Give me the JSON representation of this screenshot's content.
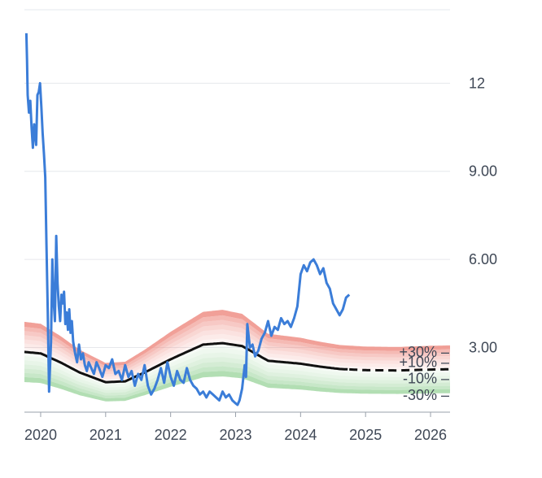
{
  "chart_data": {
    "type": "line",
    "title": "",
    "xlabel": "",
    "ylabel": "",
    "xlim": [
      2019.75,
      2026.3
    ],
    "ylim": [
      0.8,
      14.5
    ],
    "grid": true,
    "y_ticks": [
      {
        "value": 12,
        "label": "12"
      },
      {
        "value": 9,
        "label": "9.00"
      },
      {
        "value": 6,
        "label": "6.00"
      },
      {
        "value": 3,
        "label": "3.00"
      }
    ],
    "x_ticks": [
      {
        "value": 2020,
        "label": "2020"
      },
      {
        "value": 2021,
        "label": "2021"
      },
      {
        "value": 2022,
        "label": "2022"
      },
      {
        "value": 2023,
        "label": "2023"
      },
      {
        "value": 2024,
        "label": "2024"
      },
      {
        "value": 2025,
        "label": "2025"
      },
      {
        "value": 2026,
        "label": "2026"
      }
    ],
    "band_labels": [
      {
        "label": "+30% –",
        "value": 2.85
      },
      {
        "label": "+10% –",
        "value": 2.5
      },
      {
        "label": "-10% –",
        "value": 1.95
      },
      {
        "label": "-30% –",
        "value": 1.38
      }
    ],
    "colors": {
      "price": "#3b7dd8",
      "fair": "#111111",
      "upper": "#ef8f86",
      "lower": "#a5d8a6",
      "grid": "#e6e8ec"
    },
    "series": [
      {
        "role": "fair-value",
        "x": [
          2019.75,
          2020.0,
          2020.3,
          2020.6,
          2021.0,
          2021.3,
          2021.6,
          2022.0,
          2022.3,
          2022.5,
          2022.8,
          2023.1,
          2023.5,
          2024.0,
          2024.3,
          2024.6,
          2025.0,
          2025.5,
          2026.0,
          2026.3
        ],
        "y": [
          2.85,
          2.8,
          2.5,
          2.15,
          1.82,
          1.85,
          2.15,
          2.6,
          2.9,
          3.1,
          3.15,
          3.05,
          2.55,
          2.45,
          2.35,
          2.27,
          2.23,
          2.22,
          2.25,
          2.26
        ],
        "projected_from": 2024.75
      },
      {
        "role": "price",
        "x": [
          2019.78,
          2019.79,
          2019.8,
          2019.82,
          2019.84,
          2019.86,
          2019.88,
          2019.9,
          2019.93,
          2019.95,
          2019.97,
          2019.99,
          2020.01,
          2020.03,
          2020.05,
          2020.07,
          2020.09,
          2020.11,
          2020.13,
          2020.16,
          2020.18,
          2020.2,
          2020.22,
          2020.24,
          2020.26,
          2020.28,
          2020.3,
          2020.32,
          2020.34,
          2020.36,
          2020.38,
          2020.4,
          2020.42,
          2020.44,
          2020.46,
          2020.48,
          2020.5,
          2020.53,
          2020.56,
          2020.59,
          2020.62,
          2020.65,
          2020.68,
          2020.71,
          2020.74,
          2020.78,
          2020.82,
          2020.86,
          2020.9,
          2020.95,
          2021.0,
          2021.05,
          2021.1,
          2021.15,
          2021.2,
          2021.25,
          2021.3,
          2021.35,
          2021.4,
          2021.45,
          2021.5,
          2021.55,
          2021.6,
          2021.65,
          2021.7,
          2021.75,
          2021.8,
          2021.85,
          2021.9,
          2021.95,
          2022.0,
          2022.05,
          2022.1,
          2022.15,
          2022.2,
          2022.25,
          2022.3,
          2022.35,
          2022.4,
          2022.45,
          2022.5,
          2022.55,
          2022.6,
          2022.65,
          2022.7,
          2022.75,
          2022.8,
          2022.85,
          2022.9,
          2022.95,
          2023.0,
          2023.03,
          2023.06,
          2023.08,
          2023.1,
          2023.12,
          2023.14,
          2023.16,
          2023.18,
          2023.22,
          2023.26,
          2023.3,
          2023.35,
          2023.4,
          2023.45,
          2023.5,
          2023.55,
          2023.6,
          2023.65,
          2023.7,
          2023.75,
          2023.8,
          2023.85,
          2023.9,
          2023.95,
          2024.0,
          2024.05,
          2024.1,
          2024.15,
          2024.2,
          2024.25,
          2024.3,
          2024.35,
          2024.4,
          2024.45,
          2024.5,
          2024.55,
          2024.6,
          2024.65,
          2024.7,
          2024.75
        ],
        "y": [
          13.7,
          12.8,
          11.6,
          11.0,
          11.4,
          10.5,
          9.8,
          10.6,
          9.9,
          11.6,
          11.7,
          12.0,
          11.2,
          10.3,
          9.6,
          8.8,
          6.5,
          4.2,
          1.5,
          3.2,
          6.0,
          4.6,
          3.9,
          6.8,
          5.2,
          4.4,
          3.9,
          4.8,
          4.5,
          4.9,
          3.8,
          4.2,
          3.6,
          4.3,
          3.5,
          3.9,
          3.2,
          2.8,
          2.5,
          3.1,
          2.6,
          2.8,
          2.4,
          2.2,
          2.5,
          2.3,
          2.1,
          2.5,
          2.3,
          2.0,
          2.4,
          2.3,
          2.6,
          2.1,
          2.2,
          1.9,
          2.4,
          2.0,
          2.2,
          1.7,
          2.1,
          1.9,
          2.4,
          1.7,
          1.4,
          1.6,
          1.9,
          2.3,
          1.8,
          2.5,
          2.0,
          1.7,
          2.2,
          1.9,
          1.8,
          2.3,
          1.9,
          1.7,
          1.6,
          1.4,
          1.5,
          1.3,
          1.5,
          1.4,
          1.3,
          1.2,
          1.5,
          1.3,
          1.4,
          1.2,
          1.1,
          1.05,
          1.2,
          1.4,
          1.6,
          2.0,
          2.4,
          2.0,
          3.8,
          3.0,
          3.1,
          2.7,
          2.9,
          3.3,
          3.5,
          3.9,
          3.4,
          3.7,
          3.6,
          4.0,
          3.8,
          3.9,
          3.7,
          4.0,
          4.4,
          5.5,
          5.8,
          5.6,
          5.9,
          6.0,
          5.8,
          5.5,
          5.7,
          5.2,
          5.0,
          4.5,
          4.3,
          4.1,
          4.3,
          4.7,
          4.8
        ]
      }
    ]
  }
}
